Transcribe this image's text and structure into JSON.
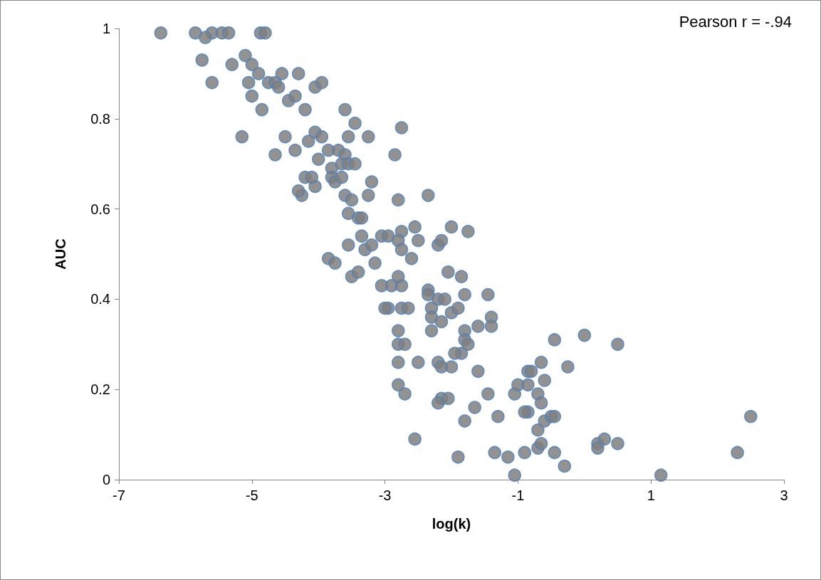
{
  "chart_data": {
    "type": "scatter",
    "xlabel": "log(k)",
    "ylabel": "AUC",
    "annotations": [
      "Pearson r = -.94"
    ],
    "marker": "circle",
    "grid": false,
    "xlim": [
      -7,
      3
    ],
    "xticks": [
      -7,
      -5,
      -3,
      -1,
      1,
      3
    ],
    "ylim": [
      0,
      1
    ],
    "yticks": [
      0,
      0.2,
      0.4,
      0.6,
      0.8,
      1
    ],
    "series": [
      {
        "color": "#7f7f7f",
        "x": [
          -6.37,
          -5.85,
          -5.6,
          -5.45,
          -5.35,
          -4.87,
          -4.8,
          -5.7,
          -5.75,
          -5.6,
          -5.3,
          -5.1,
          -5.0,
          -4.9,
          -4.75,
          -4.65,
          -4.55,
          -4.3,
          -4.05,
          -3.95,
          -5.05,
          -5.0,
          -4.85,
          -4.45,
          -4.35,
          -4.2,
          -4.6,
          -5.15,
          -4.5,
          -4.35,
          -4.65,
          -4.05,
          -3.95,
          -4.15,
          -3.85,
          -3.7,
          -3.6,
          -3.55,
          -3.45,
          -3.25,
          -2.75,
          -2.85,
          -3.6,
          -4.0,
          -3.8,
          -3.65,
          -3.55,
          -3.45,
          -3.2,
          -3.8,
          -3.75,
          -3.65,
          -4.2,
          -4.25,
          -4.3,
          -4.05,
          -4.1,
          -3.6,
          -3.5,
          -3.25,
          -2.8,
          -2.35,
          -3.55,
          -3.4,
          -3.35,
          -3.35,
          -3.05,
          -2.95,
          -2.75,
          -2.8,
          -2.75,
          -2.55,
          -2.5,
          -2.2,
          -2.15,
          -2.0,
          -1.75,
          -3.55,
          -3.3,
          -3.2,
          -3.15,
          -2.6,
          -3.85,
          -3.75,
          -3.5,
          -3.4,
          -2.9,
          -3.05,
          -2.95,
          -3.0,
          -2.75,
          -2.8,
          -2.75,
          -2.65,
          -2.35,
          -2.35,
          -2.05,
          -1.85,
          -2.2,
          -2.1,
          -1.8,
          -1.45,
          -2.3,
          -2.3,
          -2.3,
          -2.15,
          -2.0,
          -1.9,
          -1.8,
          -1.8,
          -1.85,
          -1.95,
          -1.75,
          -1.6,
          -1.4,
          -1.4,
          -2.8,
          -2.8,
          -2.7,
          -2.8,
          -2.5,
          -2.2,
          -2.15,
          -2.0,
          -2.8,
          -2.7,
          -2.15,
          -2.2,
          -2.05,
          -1.6,
          -1.45,
          -1.8,
          -1.65,
          -1.3,
          -1.9,
          -1.35,
          -1.15,
          -1.05,
          -2.55,
          -1.05,
          -1.0,
          -0.85,
          -0.85,
          -0.8,
          -0.65,
          -0.6,
          -0.7,
          -0.65,
          -0.85,
          -0.9,
          -0.9,
          -0.7,
          -0.6,
          -0.5,
          -0.45,
          -0.7,
          -0.65,
          -0.45,
          -0.3,
          -0.45,
          -0.25,
          0.0,
          0.5,
          0.2,
          0.2,
          0.3,
          0.5,
          1.15,
          2.3,
          2.5
        ],
        "values": [
          0.99,
          0.99,
          0.99,
          0.99,
          0.99,
          0.99,
          0.99,
          0.98,
          0.93,
          0.88,
          0.92,
          0.94,
          0.92,
          0.9,
          0.88,
          0.88,
          0.9,
          0.9,
          0.87,
          0.88,
          0.88,
          0.85,
          0.82,
          0.84,
          0.85,
          0.82,
          0.87,
          0.76,
          0.76,
          0.73,
          0.72,
          0.77,
          0.76,
          0.75,
          0.73,
          0.73,
          0.72,
          0.76,
          0.79,
          0.76,
          0.78,
          0.72,
          0.82,
          0.71,
          0.69,
          0.7,
          0.7,
          0.7,
          0.66,
          0.67,
          0.66,
          0.67,
          0.67,
          0.63,
          0.64,
          0.65,
          0.67,
          0.63,
          0.62,
          0.63,
          0.62,
          0.63,
          0.59,
          0.58,
          0.58,
          0.54,
          0.54,
          0.54,
          0.55,
          0.53,
          0.51,
          0.56,
          0.53,
          0.52,
          0.53,
          0.56,
          0.55,
          0.52,
          0.51,
          0.52,
          0.48,
          0.49,
          0.49,
          0.48,
          0.45,
          0.46,
          0.43,
          0.43,
          0.38,
          0.38,
          0.43,
          0.45,
          0.38,
          0.38,
          0.42,
          0.41,
          0.46,
          0.45,
          0.4,
          0.4,
          0.41,
          0.41,
          0.38,
          0.36,
          0.33,
          0.35,
          0.37,
          0.38,
          0.33,
          0.31,
          0.28,
          0.28,
          0.3,
          0.34,
          0.36,
          0.34,
          0.33,
          0.3,
          0.3,
          0.26,
          0.26,
          0.26,
          0.25,
          0.25,
          0.21,
          0.19,
          0.18,
          0.17,
          0.18,
          0.24,
          0.19,
          0.13,
          0.16,
          0.14,
          0.05,
          0.06,
          0.05,
          0.01,
          0.09,
          0.19,
          0.21,
          0.21,
          0.24,
          0.24,
          0.26,
          0.22,
          0.19,
          0.17,
          0.15,
          0.15,
          0.06,
          0.11,
          0.13,
          0.14,
          0.14,
          0.07,
          0.08,
          0.06,
          0.03,
          0.31,
          0.25,
          0.32,
          0.3,
          0.08,
          0.07,
          0.09,
          0.08,
          0.01,
          0.06,
          0.14
        ]
      }
    ]
  }
}
